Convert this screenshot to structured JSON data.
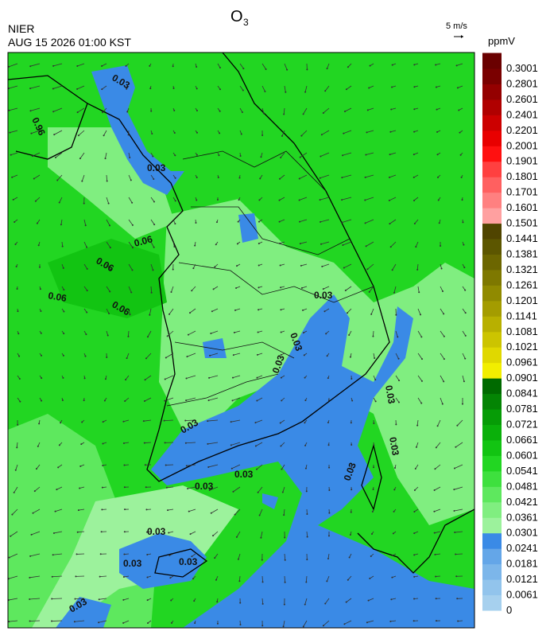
{
  "header": {
    "org": "NIER",
    "datetime": "AUG 15 2026 01:00 KST",
    "title": "O",
    "title_subscript": "3",
    "wind_reference": "5 m/s"
  },
  "legend": {
    "unit": "ppmV",
    "labels": [
      "0",
      "0.0061",
      "0.0121",
      "0.0181",
      "0.0241",
      "0.0301",
      "0.0361",
      "0.0421",
      "0.0481",
      "0.0541",
      "0.0601",
      "0.0661",
      "0.0721",
      "0.0781",
      "0.0841",
      "0.0901",
      "0.0961",
      "0.1021",
      "0.1081",
      "0.1141",
      "0.1201",
      "0.1261",
      "0.1321",
      "0.1381",
      "0.1441",
      "0.1501",
      "0.1601",
      "0.1701",
      "0.1801",
      "0.1901",
      "0.2001",
      "0.2201",
      "0.2401",
      "0.2601",
      "0.2801",
      "0.3001"
    ],
    "colors": [
      "#a6d0ee",
      "#92c4ec",
      "#7cb6ea",
      "#64a6e8",
      "#3a8ae6",
      "#9cf29c",
      "#80ee80",
      "#5ee85e",
      "#3ee03e",
      "#22d622",
      "#12c412",
      "#0ab00a",
      "#069c06",
      "#048404",
      "#006a00",
      "#f2ee00",
      "#e0d800",
      "#ccc400",
      "#b8b000",
      "#a49c00",
      "#908a00",
      "#7e7800",
      "#6c6600",
      "#5c5600",
      "#504400",
      "#ffa0a0",
      "#ff8080",
      "#ff6060",
      "#ff4040",
      "#ff1010",
      "#e80000",
      "#cc0000",
      "#b00000",
      "#940000",
      "#7a0000",
      "#6a0000"
    ]
  },
  "map": {
    "contour_labels": [
      "0.96",
      "0.03",
      "0.03",
      "0.06",
      "0.06",
      "0.06",
      "0.06",
      "0.03",
      "0.03",
      "0.03",
      "0.03",
      "0.03",
      "0.03",
      "0.03",
      "0.03",
      "0.03",
      "0.03",
      "0.03",
      "0.03",
      "0.03"
    ]
  }
}
